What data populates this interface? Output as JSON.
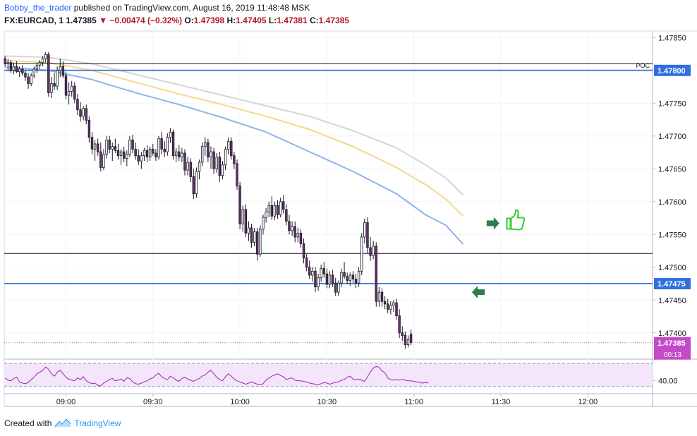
{
  "header": {
    "author": "Bobby_the_trader",
    "published": "published on TradingView.com, August 16, 2019 11:48:48 MSK",
    "symbol": "FX:EURCAD, 1",
    "last": "1.47385",
    "change": "−0.00474 (−0.32%)",
    "o_label": "O:",
    "o_value": "1.47398",
    "h_label": "H:",
    "h_value": "1.47405",
    "l_label": "L:",
    "l_value": "1.47381",
    "c_label": "C:",
    "c_value": "1.47385"
  },
  "footer": {
    "created_with": "Created with",
    "brand": "TradingView"
  },
  "colors": {
    "candle_up": "#ffffff",
    "candle_down": "#6d2f6d",
    "candle_outline": "#131722",
    "level_line": "#4a84d6",
    "ma_fast": "#8fb4e8",
    "ma_mid": "#f3d98a",
    "ma_slow": "#d6d6d6",
    "osc_line": "#9c27b0",
    "osc_fill": "#f3e5fa",
    "price_label_bg": "#2f6fde",
    "last_label_bg": "#c34ac8",
    "arrow": "#2e7d4f",
    "thumb": "#33cc33"
  },
  "chart_data": {
    "type": "candlestick",
    "price_axis": {
      "ticks": [
        "1.47850",
        "1.47800",
        "1.47750",
        "1.47700",
        "1.47650",
        "1.47600",
        "1.47550",
        "1.47500",
        "1.47450",
        "1.47400"
      ],
      "range": [
        1.4736,
        1.4786
      ]
    },
    "time_axis": {
      "ticks": [
        {
          "label": "09:00",
          "min": 0
        },
        {
          "label": "09:30",
          "min": 30
        },
        {
          "label": "10:00",
          "min": 60
        },
        {
          "label": "10:30",
          "min": 90
        },
        {
          "label": "11:00",
          "min": 120
        },
        {
          "label": "11:30",
          "min": 150
        },
        {
          "label": "12:00",
          "min": 180
        }
      ],
      "start_label": "08:39",
      "interval": "1 minute"
    },
    "levels": [
      {
        "name": "POC",
        "price": 1.478,
        "label": "1.47800",
        "style": "blue"
      },
      {
        "name": "",
        "price": 1.47475,
        "label": "1.47475",
        "style": "blue"
      },
      {
        "name": "",
        "price": 1.4781,
        "label": "",
        "style": "black"
      },
      {
        "name": "",
        "price": 1.47521,
        "label": "",
        "style": "black"
      }
    ],
    "poc_text": "POC",
    "last_price": {
      "label": "1.47385",
      "countdown": "00:13",
      "price": 1.47385
    },
    "candles": [
      [
        1.47818,
        1.47822,
        1.47806,
        1.4781
      ],
      [
        1.4781,
        1.47818,
        1.478,
        1.47812
      ],
      [
        1.47812,
        1.47816,
        1.47796,
        1.478
      ],
      [
        1.478,
        1.47812,
        1.47794,
        1.47806
      ],
      [
        1.47806,
        1.47814,
        1.47796,
        1.47798
      ],
      [
        1.47798,
        1.47806,
        1.4779,
        1.47802
      ],
      [
        1.47802,
        1.47808,
        1.47792,
        1.47796
      ],
      [
        1.47796,
        1.478,
        1.47784,
        1.4779
      ],
      [
        1.4779,
        1.47796,
        1.47772,
        1.4778
      ],
      [
        1.4778,
        1.47796,
        1.47776,
        1.47792
      ],
      [
        1.47792,
        1.47806,
        1.47788,
        1.47802
      ],
      [
        1.47802,
        1.47812,
        1.47796,
        1.47808
      ],
      [
        1.47808,
        1.47816,
        1.47802,
        1.47812
      ],
      [
        1.47812,
        1.47822,
        1.47806,
        1.47818
      ],
      [
        1.47818,
        1.47828,
        1.47812,
        1.47824
      ],
      [
        1.47824,
        1.47828,
        1.4776,
        1.47766
      ],
      [
        1.47766,
        1.4779,
        1.47758,
        1.4778
      ],
      [
        1.4778,
        1.47796,
        1.4777,
        1.47776
      ],
      [
        1.47776,
        1.47806,
        1.4777,
        1.478
      ],
      [
        1.478,
        1.47818,
        1.4779,
        1.47806
      ],
      [
        1.47806,
        1.47814,
        1.47788,
        1.47792
      ],
      [
        1.47792,
        1.47798,
        1.47756,
        1.47762
      ],
      [
        1.47762,
        1.47782,
        1.47748,
        1.47768
      ],
      [
        1.47768,
        1.47784,
        1.4776,
        1.47776
      ],
      [
        1.47776,
        1.47782,
        1.4775,
        1.47756
      ],
      [
        1.47756,
        1.47764,
        1.47732,
        1.4774
      ],
      [
        1.4774,
        1.47752,
        1.47722,
        1.4773
      ],
      [
        1.4773,
        1.47746,
        1.47724,
        1.47742
      ],
      [
        1.47742,
        1.47748,
        1.47718,
        1.47724
      ],
      [
        1.47724,
        1.4773,
        1.4769,
        1.47698
      ],
      [
        1.47698,
        1.47706,
        1.47672,
        1.4768
      ],
      [
        1.4768,
        1.47694,
        1.47662,
        1.47688
      ],
      [
        1.47688,
        1.47696,
        1.4767,
        1.47676
      ],
      [
        1.47676,
        1.4769,
        1.47646,
        1.47652
      ],
      [
        1.47652,
        1.4768,
        1.47648,
        1.47672
      ],
      [
        1.47672,
        1.477,
        1.47666,
        1.47694
      ],
      [
        1.47694,
        1.477,
        1.47674,
        1.4768
      ],
      [
        1.4768,
        1.4769,
        1.47662,
        1.47684
      ],
      [
        1.47684,
        1.47696,
        1.47674,
        1.47678
      ],
      [
        1.47678,
        1.47688,
        1.47664,
        1.4767
      ],
      [
        1.4767,
        1.4768,
        1.47656,
        1.47676
      ],
      [
        1.47676,
        1.47684,
        1.4766,
        1.47666
      ],
      [
        1.47666,
        1.47678,
        1.47654,
        1.47672
      ],
      [
        1.47672,
        1.477,
        1.47668,
        1.47694
      ],
      [
        1.47694,
        1.47702,
        1.47674,
        1.4768
      ],
      [
        1.4768,
        1.4769,
        1.47664,
        1.4767
      ],
      [
        1.4767,
        1.4768,
        1.47656,
        1.47662
      ],
      [
        1.47662,
        1.47676,
        1.4765,
        1.4767
      ],
      [
        1.4767,
        1.47682,
        1.47662,
        1.47678
      ],
      [
        1.47678,
        1.47686,
        1.4766,
        1.47668
      ],
      [
        1.47668,
        1.47684,
        1.47662,
        1.4768
      ],
      [
        1.4768,
        1.47688,
        1.4767,
        1.47674
      ],
      [
        1.47674,
        1.4768,
        1.47662,
        1.47668
      ],
      [
        1.47668,
        1.477,
        1.47664,
        1.47696
      ],
      [
        1.47696,
        1.47706,
        1.47672,
        1.4768
      ],
      [
        1.4768,
        1.47692,
        1.47668,
        1.47676
      ],
      [
        1.47676,
        1.47704,
        1.4767,
        1.47698
      ],
      [
        1.47698,
        1.47712,
        1.4769,
        1.47706
      ],
      [
        1.47706,
        1.4771,
        1.47664,
        1.4767
      ],
      [
        1.4767,
        1.47682,
        1.4766,
        1.47676
      ],
      [
        1.47676,
        1.47686,
        1.47662,
        1.47668
      ],
      [
        1.47668,
        1.47682,
        1.4766,
        1.47674
      ],
      [
        1.47674,
        1.4768,
        1.4764,
        1.47648
      ],
      [
        1.47648,
        1.47668,
        1.4764,
        1.4766
      ],
      [
        1.4766,
        1.47666,
        1.4763,
        1.47638
      ],
      [
        1.47638,
        1.4765,
        1.47604,
        1.47612
      ],
      [
        1.47612,
        1.47652,
        1.47606,
        1.47646
      ],
      [
        1.47646,
        1.47664,
        1.47634,
        1.4766
      ],
      [
        1.4766,
        1.4769,
        1.47654,
        1.47684
      ],
      [
        1.47684,
        1.47698,
        1.4767,
        1.4769
      ],
      [
        1.4769,
        1.47696,
        1.4766,
        1.47668
      ],
      [
        1.47668,
        1.47684,
        1.4765,
        1.47676
      ],
      [
        1.47676,
        1.47682,
        1.47642,
        1.4765
      ],
      [
        1.4765,
        1.47674,
        1.47644,
        1.47668
      ],
      [
        1.47668,
        1.47676,
        1.4763,
        1.4764
      ],
      [
        1.4764,
        1.47662,
        1.47634,
        1.47656
      ],
      [
        1.47656,
        1.47684,
        1.47648,
        1.4768
      ],
      [
        1.4768,
        1.47698,
        1.47672,
        1.47692
      ],
      [
        1.47692,
        1.47698,
        1.47664,
        1.4767
      ],
      [
        1.4767,
        1.47676,
        1.4765,
        1.47658
      ],
      [
        1.47658,
        1.47664,
        1.47618,
        1.47624
      ],
      [
        1.47624,
        1.4763,
        1.47558,
        1.47566
      ],
      [
        1.47566,
        1.47594,
        1.47554,
        1.47588
      ],
      [
        1.47588,
        1.47596,
        1.47546,
        1.47552
      ],
      [
        1.47552,
        1.4757,
        1.4754,
        1.4756
      ],
      [
        1.4756,
        1.47566,
        1.4753,
        1.47538
      ],
      [
        1.47538,
        1.4756,
        1.47532,
        1.47554
      ],
      [
        1.47554,
        1.4756,
        1.4751,
        1.4752
      ],
      [
        1.4752,
        1.47564,
        1.47516,
        1.47558
      ],
      [
        1.47558,
        1.4758,
        1.4755,
        1.47576
      ],
      [
        1.47576,
        1.4759,
        1.47568,
        1.47584
      ],
      [
        1.47584,
        1.476,
        1.47576,
        1.47594
      ],
      [
        1.47594,
        1.47608,
        1.47572,
        1.47578
      ],
      [
        1.47578,
        1.476,
        1.47572,
        1.47594
      ],
      [
        1.47594,
        1.47602,
        1.47574,
        1.4758
      ],
      [
        1.4758,
        1.47606,
        1.47576,
        1.476
      ],
      [
        1.476,
        1.4761,
        1.47582,
        1.47588
      ],
      [
        1.47588,
        1.47596,
        1.47564,
        1.4757
      ],
      [
        1.4757,
        1.4758,
        1.4755,
        1.47556
      ],
      [
        1.47556,
        1.4757,
        1.47548,
        1.47562
      ],
      [
        1.47562,
        1.4757,
        1.47538,
        1.47546
      ],
      [
        1.47546,
        1.4756,
        1.47538,
        1.47552
      ],
      [
        1.47552,
        1.47558,
        1.4753,
        1.47536
      ],
      [
        1.47536,
        1.47544,
        1.47506,
        1.47514
      ],
      [
        1.47514,
        1.4752,
        1.47494,
        1.475
      ],
      [
        1.475,
        1.4751,
        1.47482,
        1.47488
      ],
      [
        1.47488,
        1.475,
        1.47478,
        1.47494
      ],
      [
        1.47494,
        1.475,
        1.47462,
        1.4747
      ],
      [
        1.4747,
        1.4749,
        1.47464,
        1.47484
      ],
      [
        1.47484,
        1.47504,
        1.47478,
        1.47498
      ],
      [
        1.47498,
        1.47508,
        1.47484,
        1.4749
      ],
      [
        1.4749,
        1.47498,
        1.47468,
        1.47474
      ],
      [
        1.47474,
        1.47494,
        1.47468,
        1.47488
      ],
      [
        1.47488,
        1.47496,
        1.4747,
        1.47476
      ],
      [
        1.47476,
        1.47484,
        1.47456,
        1.47462
      ],
      [
        1.47462,
        1.4748,
        1.47456,
        1.47476
      ],
      [
        1.47476,
        1.47498,
        1.4747,
        1.47492
      ],
      [
        1.47492,
        1.47508,
        1.47482,
        1.47486
      ],
      [
        1.47486,
        1.47492,
        1.47474,
        1.4748
      ],
      [
        1.4748,
        1.47492,
        1.47472,
        1.47488
      ],
      [
        1.47488,
        1.47494,
        1.47476,
        1.47482
      ],
      [
        1.47482,
        1.4749,
        1.47468,
        1.47476
      ],
      [
        1.47476,
        1.475,
        1.4747,
        1.47494
      ],
      [
        1.47494,
        1.47552,
        1.47488,
        1.47546
      ],
      [
        1.47546,
        1.47574,
        1.47536,
        1.47568
      ],
      [
        1.47568,
        1.47576,
        1.47522,
        1.4753
      ],
      [
        1.4753,
        1.47546,
        1.4751,
        1.47518
      ],
      [
        1.47518,
        1.4754,
        1.47512,
        1.47532
      ],
      [
        1.47532,
        1.47538,
        1.4744,
        1.47448
      ],
      [
        1.47448,
        1.4747,
        1.4744,
        1.47462
      ],
      [
        1.47462,
        1.47468,
        1.4744,
        1.47448
      ],
      [
        1.47448,
        1.47456,
        1.47436,
        1.47444
      ],
      [
        1.47444,
        1.47452,
        1.4743,
        1.47436
      ],
      [
        1.47436,
        1.47448,
        1.47428,
        1.47442
      ],
      [
        1.47442,
        1.4745,
        1.47432,
        1.47446
      ],
      [
        1.47446,
        1.47452,
        1.4742,
        1.47426
      ],
      [
        1.47426,
        1.47436,
        1.47392,
        1.474
      ],
      [
        1.474,
        1.4741,
        1.47388,
        1.47396
      ],
      [
        1.47396,
        1.47402,
        1.47376,
        1.47382
      ],
      [
        1.47382,
        1.47396,
        1.47378,
        1.4739
      ],
      [
        1.47398,
        1.47405,
        1.47381,
        1.47385
      ]
    ],
    "moving_averages": [
      {
        "color": "#8fb4e8",
        "points": [
          [
            0,
            1.47805
          ],
          [
            15,
            1.478
          ],
          [
            30,
            1.47786
          ],
          [
            45,
            1.47766
          ],
          [
            60,
            1.47748
          ],
          [
            75,
            1.47728
          ],
          [
            90,
            1.47706
          ],
          [
            105,
            1.47676
          ],
          [
            120,
            1.47646
          ],
          [
            135,
            1.47612
          ],
          [
            145,
            1.4758
          ],
          [
            152,
            1.47564
          ],
          [
            158,
            1.47535
          ]
        ]
      },
      {
        "color": "#f3d98a",
        "points": [
          [
            0,
            1.47815
          ],
          [
            15,
            1.47812
          ],
          [
            30,
            1.478
          ],
          [
            45,
            1.47782
          ],
          [
            60,
            1.47764
          ],
          [
            75,
            1.47748
          ],
          [
            90,
            1.4773
          ],
          [
            105,
            1.4771
          ],
          [
            120,
            1.47684
          ],
          [
            135,
            1.47652
          ],
          [
            145,
            1.47626
          ],
          [
            152,
            1.47604
          ],
          [
            158,
            1.47578
          ]
        ]
      },
      {
        "color": "#d6d6d6",
        "points": [
          [
            0,
            1.47822
          ],
          [
            15,
            1.4782
          ],
          [
            30,
            1.4781
          ],
          [
            45,
            1.47794
          ],
          [
            60,
            1.47778
          ],
          [
            75,
            1.47762
          ],
          [
            90,
            1.47746
          ],
          [
            105,
            1.4773
          ],
          [
            120,
            1.47708
          ],
          [
            135,
            1.47682
          ],
          [
            145,
            1.47656
          ],
          [
            152,
            1.47636
          ],
          [
            158,
            1.4761
          ]
        ]
      }
    ],
    "oscillator": {
      "tick_label": "40.00",
      "level": 40,
      "bands": [
        70,
        30
      ],
      "range": [
        25,
        75
      ],
      "values": [
        45,
        41,
        40,
        44,
        46,
        38,
        36,
        35,
        37,
        42,
        46,
        52,
        55,
        58,
        64,
        60,
        52,
        48,
        55,
        58,
        52,
        46,
        43,
        41,
        40,
        45,
        42,
        47,
        40,
        37,
        35,
        36,
        32,
        31,
        36,
        39,
        42,
        44,
        40,
        41,
        43,
        39,
        45,
        44,
        38,
        35,
        34,
        36,
        38,
        40,
        43,
        45,
        50,
        53,
        47,
        44,
        42,
        48,
        45,
        41,
        39,
        44,
        46,
        43,
        41,
        39,
        42,
        44,
        48,
        50,
        55,
        58,
        52,
        46,
        42,
        40,
        47,
        52,
        48,
        43,
        40,
        38,
        36,
        34,
        36,
        38,
        36,
        34,
        33,
        35,
        41,
        45,
        48,
        50,
        52,
        49,
        47,
        42,
        44,
        45,
        41,
        40,
        40,
        39,
        38,
        36,
        35,
        34,
        33,
        35,
        37,
        36,
        34,
        36,
        37,
        38,
        41,
        42,
        46,
        48,
        43,
        42,
        43,
        41,
        39,
        47,
        55,
        62,
        65,
        63,
        57,
        54,
        45,
        42,
        41,
        42,
        41,
        42,
        41,
        40,
        40,
        39,
        38,
        37,
        36,
        37,
        36
      ],
      "fill_to": "bands"
    },
    "annotations": [
      {
        "type": "arrow-right",
        "min": 148.5,
        "price": 1.47567
      },
      {
        "type": "arrow-left",
        "min": 141,
        "price": 1.47462
      },
      {
        "type": "thumbs-up",
        "min": 154,
        "price": 1.47568
      }
    ]
  }
}
